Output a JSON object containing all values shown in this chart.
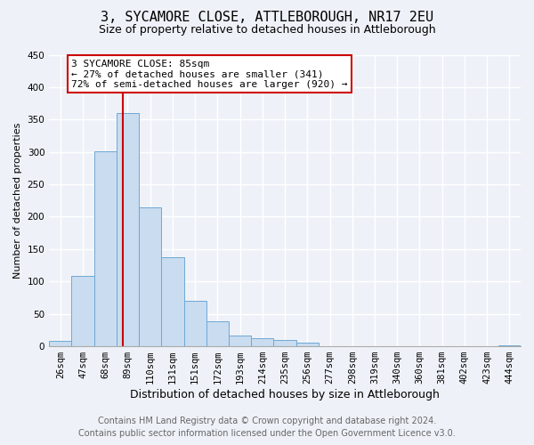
{
  "title": "3, SYCAMORE CLOSE, ATTLEBOROUGH, NR17 2EU",
  "subtitle": "Size of property relative to detached houses in Attleborough",
  "xlabel": "Distribution of detached houses by size in Attleborough",
  "ylabel": "Number of detached properties",
  "bar_labels": [
    "26sqm",
    "47sqm",
    "68sqm",
    "89sqm",
    "110sqm",
    "131sqm",
    "151sqm",
    "172sqm",
    "193sqm",
    "214sqm",
    "235sqm",
    "256sqm",
    "277sqm",
    "298sqm",
    "319sqm",
    "340sqm",
    "360sqm",
    "381sqm",
    "402sqm",
    "423sqm",
    "444sqm"
  ],
  "bar_values": [
    9,
    108,
    301,
    360,
    214,
    137,
    70,
    39,
    16,
    13,
    10,
    6,
    0,
    0,
    0,
    0,
    0,
    0,
    0,
    0,
    2
  ],
  "bar_color": "#c9dcf0",
  "bar_edge_color": "#6fa8d4",
  "property_line_label": "3 SYCAMORE CLOSE: 85sqm",
  "annotation_line1": "← 27% of detached houses are smaller (341)",
  "annotation_line2": "72% of semi-detached houses are larger (920) →",
  "annotation_box_color": "#ffffff",
  "annotation_box_edge_color": "#cc0000",
  "vline_color": "#cc0000",
  "ylim": [
    0,
    450
  ],
  "footer_line1": "Contains HM Land Registry data © Crown copyright and database right 2024.",
  "footer_line2": "Contains public sector information licensed under the Open Government Licence v3.0.",
  "background_color": "#eef2f8",
  "grid_color": "#ffffff",
  "title_fontsize": 11,
  "subtitle_fontsize": 9,
  "xlabel_fontsize": 9,
  "ylabel_fontsize": 8,
  "tick_fontsize": 7.5,
  "annotation_fontsize": 8,
  "footer_fontsize": 7,
  "vline_x_index": 2.78
}
